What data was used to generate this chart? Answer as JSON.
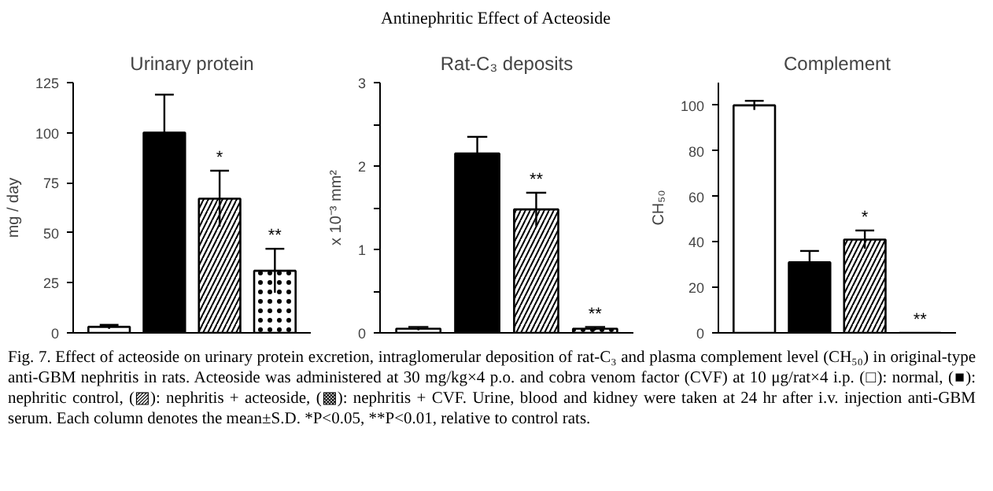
{
  "chart_data": [
    {
      "type": "bar",
      "title": "Urinary protein",
      "ylabel": "mg / day",
      "categories": [
        null,
        null,
        null,
        null
      ],
      "values": [
        3,
        100,
        67,
        31
      ],
      "errors": [
        1,
        19,
        14,
        11
      ],
      "value_labels": [
        null,
        null,
        "*",
        "**"
      ],
      "colors": [
        "#ffffff",
        "#000000",
        "#ffffff",
        "#ffffff"
      ],
      "ylim": [
        0,
        125
      ],
      "yticks": [
        0,
        25,
        50,
        75,
        100,
        125
      ],
      "grid": false,
      "annotations": [
        "Antinephritic Effect of Acteoside",
        "Fig. 7.  Effect of acteoside on urinary protein excretion, intraglomerular deposition of rat-C₃ and plasma complement level (CH₅₀) in original-type anti-GBM nephritis in rats. Acteoside was administered at 30 mg/kg×4 p.o. and cobra venom factor (CVF) at 10 μg/rat×4 i.p. (□): normal, (■): nephritic control, (▨): nephritis + acteoside, (▩): nephritis + CVF. Urine, blood and kidney were taken at 24 hr after i.v. injection anti-GBM serum. Each column denotes the mean±S.D. *P<0.05, **P<0.01, relative to control rats."
      ]
    },
    {
      "type": "bar",
      "title": "Rat-C₃ deposits",
      "ylabel": "x 10⁻³ mm²",
      "categories": [
        null,
        null,
        null,
        null
      ],
      "values": [
        0.05,
        2.15,
        1.48,
        0.05
      ],
      "errors": [
        0.02,
        0.2,
        0.2,
        0.02
      ],
      "value_labels": [
        null,
        null,
        "**",
        "**"
      ],
      "colors": [
        "#ffffff",
        "#000000",
        "#ffffff",
        "#ffffff"
      ],
      "ylim": [
        0,
        3
      ],
      "yticks": [
        0,
        {
          "value": 0.5,
          "label": null
        },
        1,
        {
          "value": 1.5,
          "label": null
        },
        2,
        {
          "value": 2.5,
          "label": null
        },
        3
      ],
      "grid": false
    },
    {
      "type": "bar",
      "title": "Complement",
      "ylabel": "CH₅₀",
      "categories": [
        null,
        null,
        null,
        null
      ],
      "values": [
        100,
        31,
        41,
        0
      ],
      "errors": [
        2,
        5,
        4,
        null
      ],
      "value_labels": [
        null,
        null,
        "*",
        "**"
      ],
      "colors": [
        "#ffffff",
        "#000000",
        "#ffffff",
        "#000000"
      ],
      "ylim": [
        0,
        110
      ],
      "yticks": [
        0,
        20,
        40,
        60,
        80,
        100
      ],
      "grid": false
    }
  ]
}
